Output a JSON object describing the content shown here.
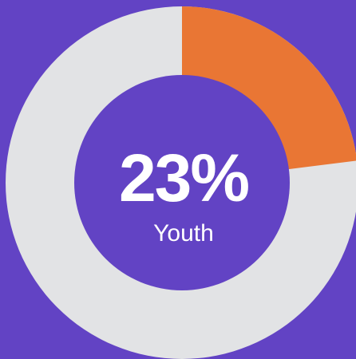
{
  "chart_data": {
    "type": "donut",
    "categories": [
      "Youth"
    ],
    "values": [
      23
    ],
    "value_labels": [
      "23%"
    ],
    "color": "#e97634",
    "track_color": "#e2e3e5",
    "background": "#6243c4"
  }
}
